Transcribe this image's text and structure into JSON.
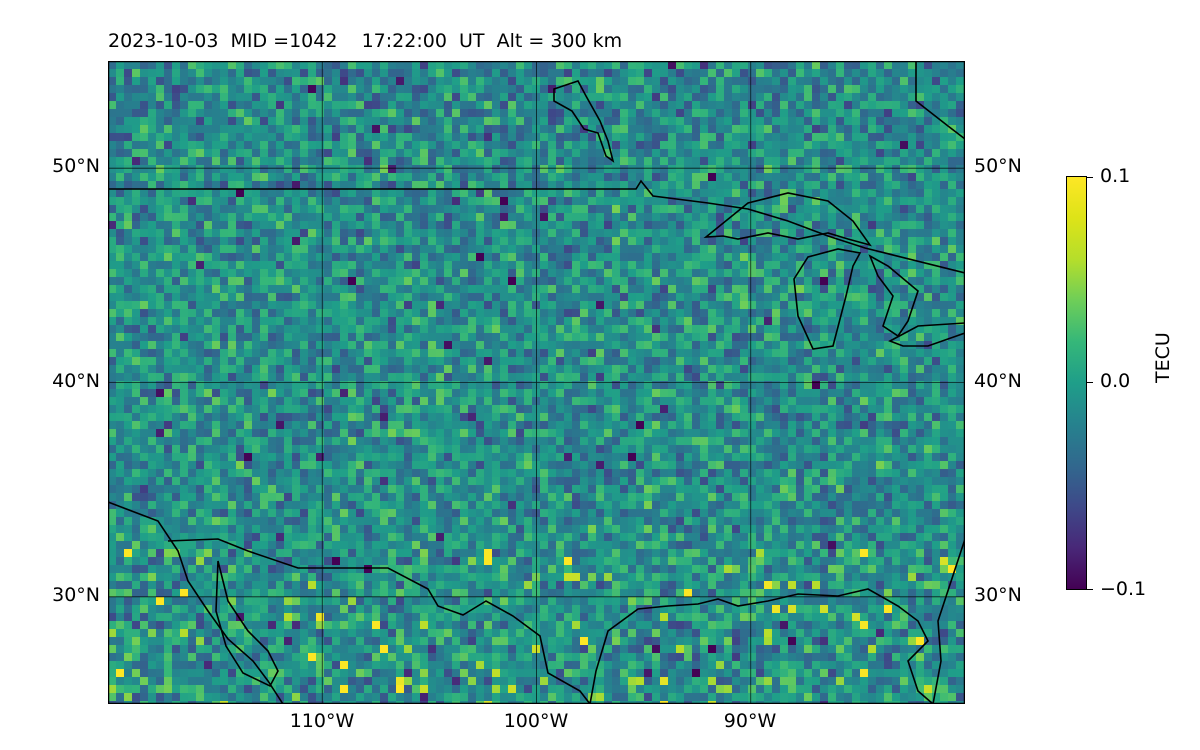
{
  "title": "2023-10-03  MID =1042    17:22:00  UT  Alt = 300 km",
  "map": {
    "lon_range": [
      -120,
      -80
    ],
    "lat_range": [
      25,
      55
    ],
    "grid": true,
    "lat_labels": [
      "50°N",
      "40°N",
      "30°N"
    ],
    "lat_values": [
      50,
      40,
      30
    ],
    "lon_labels": [
      "110°W",
      "100°W",
      "90°W"
    ],
    "lon_values": [
      -110,
      -100,
      -90
    ],
    "colormap": "viridis",
    "line_color": "#000000"
  },
  "colorbar": {
    "label": "TECU",
    "max_label": "0.1",
    "mid_label": "0.0",
    "min_label": "−0.1",
    "range": [
      -0.1,
      0.1
    ]
  }
}
